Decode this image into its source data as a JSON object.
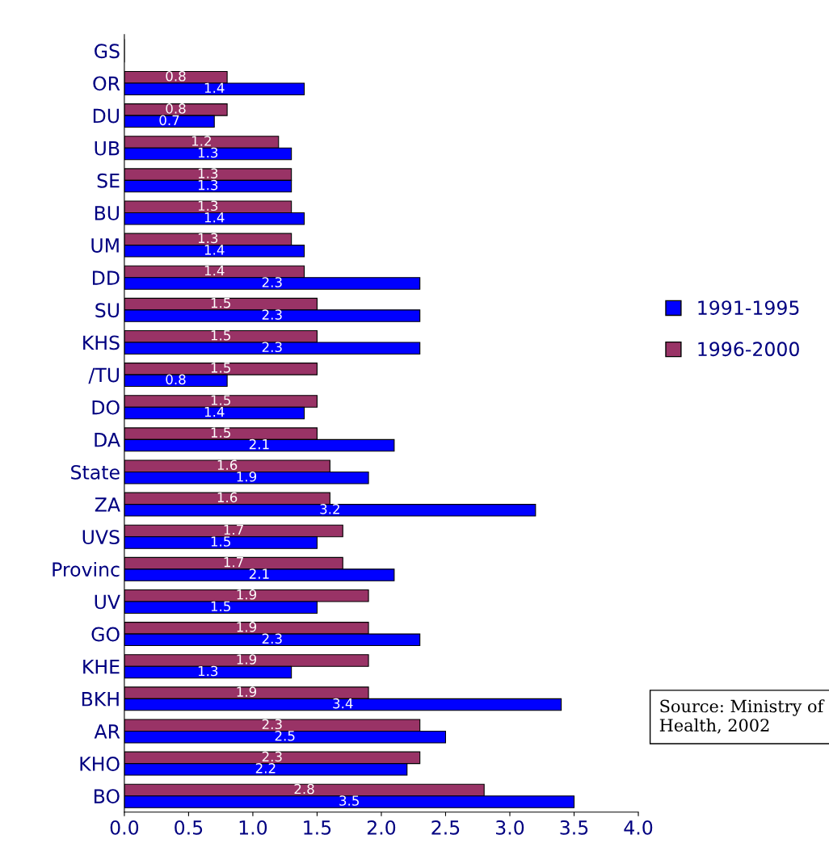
{
  "chart_data": {
    "type": "bar",
    "orientation": "horizontal",
    "categories": [
      "GS",
      "OR",
      "DU",
      "UB",
      "SE",
      "BU",
      "UM",
      "DD",
      "SU",
      "KHS",
      "/TU",
      "DO",
      "DA",
      "State",
      "ZA",
      "UVS",
      "Provinc",
      "UV",
      "GO",
      "KHE",
      "BKH",
      "AR",
      "KHO",
      "BO"
    ],
    "series": [
      {
        "name": "1996-2000",
        "color": "#993366",
        "values": [
          0,
          0.8,
          0.8,
          1.2,
          1.3,
          1.3,
          1.3,
          1.4,
          1.5,
          1.5,
          1.5,
          1.5,
          1.5,
          1.6,
          1.6,
          1.7,
          1.7,
          1.9,
          1.9,
          1.9,
          1.9,
          2.3,
          2.3,
          2.8
        ],
        "value_labels": [
          null,
          "0.8",
          "0.8",
          "1.2",
          "1.3",
          "1.3",
          "1.3",
          "1.4",
          "1.5",
          "1.5",
          "1.5",
          "1.5",
          "1.5",
          "1.6",
          "1.6",
          "1.7",
          "1.7",
          "1.9",
          "1.9",
          "1.9",
          "1.9",
          "2.3",
          "2.3",
          "2.8"
        ]
      },
      {
        "name": "1991-1995",
        "color": "#0000ff",
        "values": [
          0,
          1.4,
          0.7,
          1.3,
          1.3,
          1.4,
          1.4,
          2.3,
          2.3,
          2.3,
          0.8,
          1.4,
          2.1,
          1.9,
          3.2,
          1.5,
          2.1,
          1.5,
          2.3,
          1.3,
          3.4,
          2.5,
          2.2,
          3.5
        ],
        "value_labels": [
          null,
          "1.4",
          "0.7",
          "1.3",
          "1.3",
          "1.4",
          "1.4",
          "2.3",
          "2.3",
          "2.3",
          "0.8",
          "1.4",
          "2.1",
          "1.9",
          "3.2",
          "1.5",
          "2.1",
          "1.5",
          "2.3",
          "1.3",
          "3.4",
          "2.5",
          "2.2",
          "3.5"
        ]
      }
    ],
    "xlim": [
      0,
      4
    ],
    "xticks": [
      {
        "value": 0,
        "label": "0.0"
      },
      {
        "value": 0.5,
        "label": "0.5"
      },
      {
        "value": 1,
        "label": "1.0"
      },
      {
        "value": 1.5,
        "label": "1.5"
      },
      {
        "value": 2,
        "label": "2.0"
      },
      {
        "value": 2.5,
        "label": "2.5"
      },
      {
        "value": 3,
        "label": "3.0"
      },
      {
        "value": 3.5,
        "label": "3.5"
      },
      {
        "value": 4,
        "label": "4.0"
      }
    ],
    "grid": false,
    "legend": "right",
    "annotations": [
      "Source: Ministry of Health, 2002"
    ]
  }
}
